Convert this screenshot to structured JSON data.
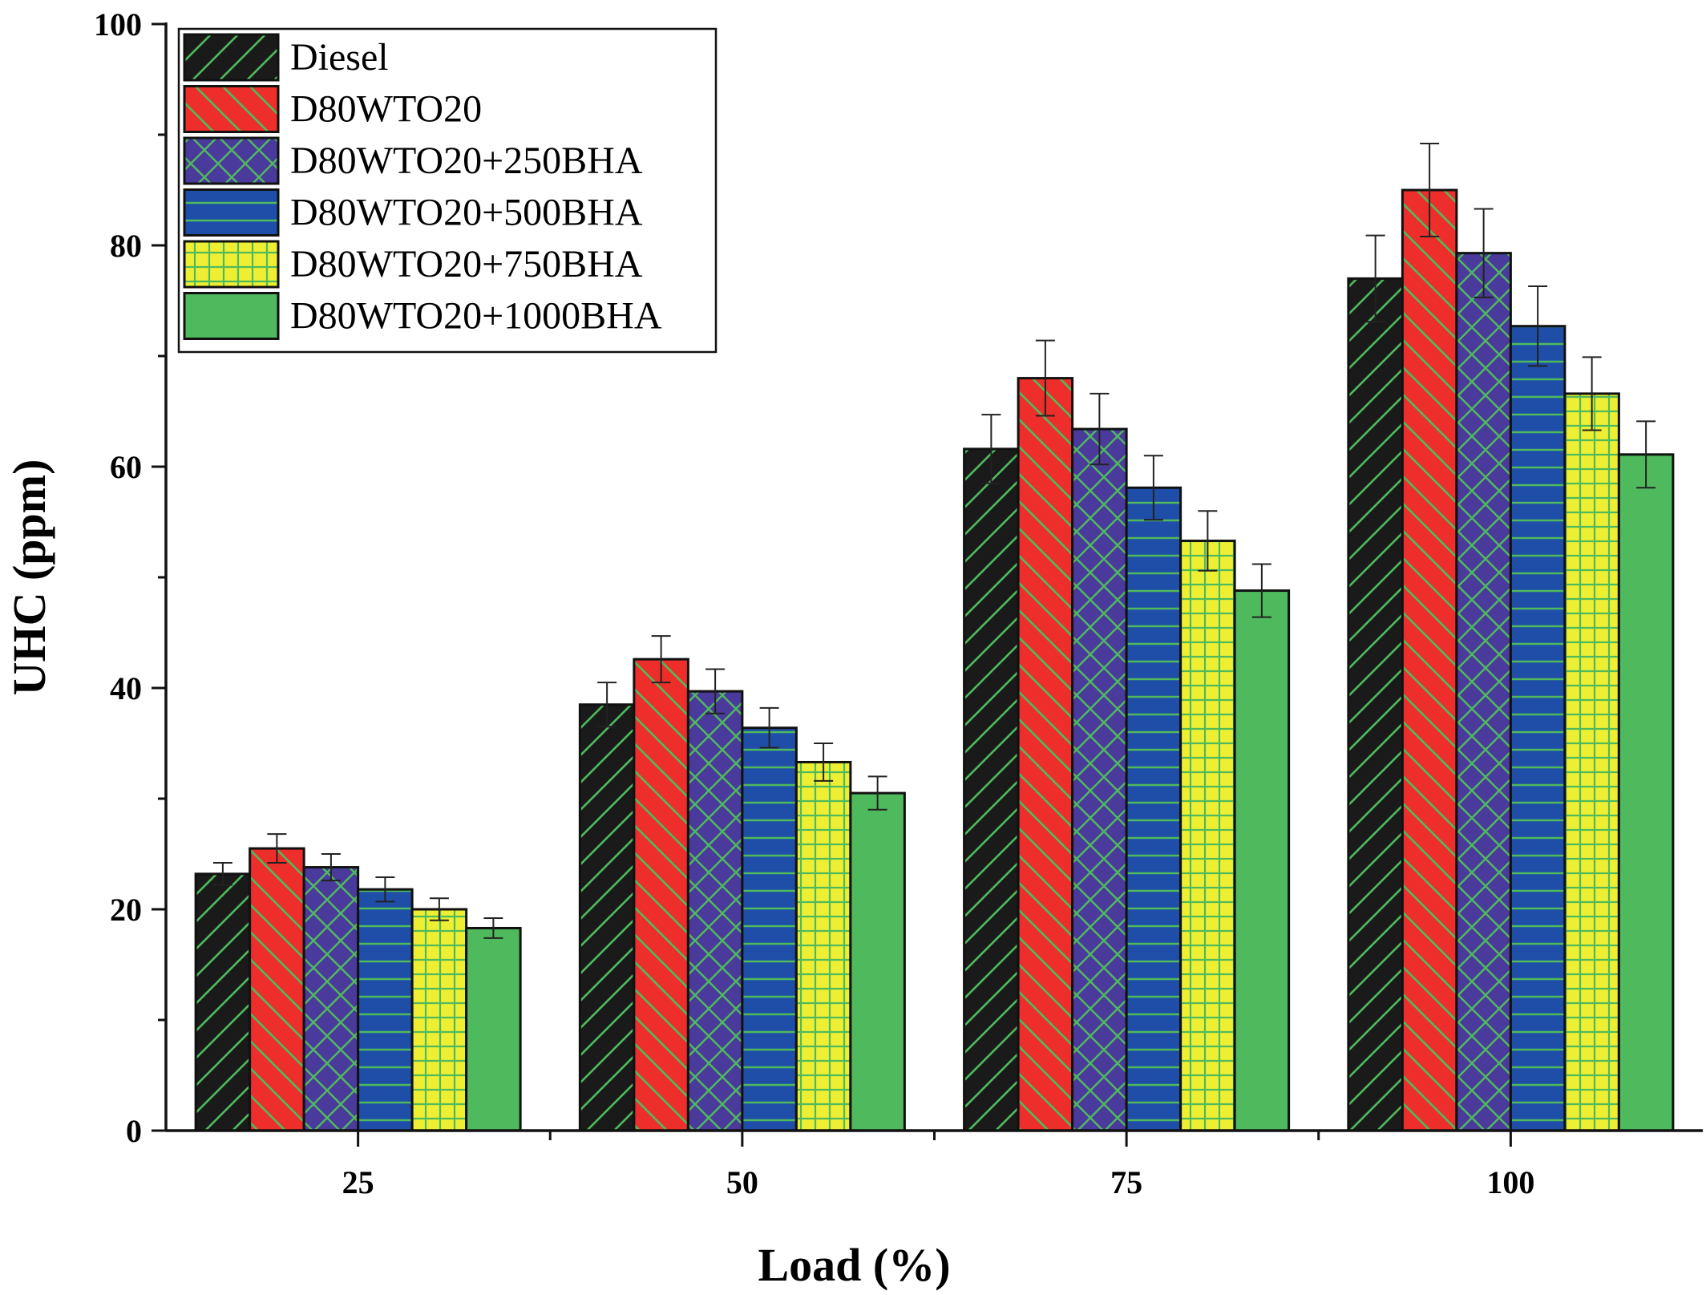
{
  "chart_data": {
    "type": "bar",
    "title": "",
    "xlabel": "Load (%)",
    "ylabel": "UHC (ppm)",
    "categories": [
      "25",
      "50",
      "75",
      "100"
    ],
    "ylim": [
      0,
      100
    ],
    "yticks": [
      "0",
      "20",
      "40",
      "60",
      "80",
      "100"
    ],
    "legend_position": "top-left",
    "grid": false,
    "series": [
      {
        "name": "Diesel",
        "color": "#1a1a1a",
        "pattern": "diag-up",
        "values": [
          23.2,
          38.5,
          61.6,
          77.0
        ],
        "errors": [
          1.0,
          2.0,
          3.1,
          3.9
        ]
      },
      {
        "name": "D80WTO20",
        "color": "#ee2e2a",
        "pattern": "diag-down",
        "values": [
          25.5,
          42.6,
          68.0,
          85.0
        ],
        "errors": [
          1.3,
          2.1,
          3.4,
          4.2
        ]
      },
      {
        "name": "D80WTO20+250BHA",
        "color": "#4a3a9c",
        "pattern": "crosshatch",
        "values": [
          23.8,
          39.7,
          63.4,
          79.3
        ],
        "errors": [
          1.2,
          2.0,
          3.2,
          4.0
        ]
      },
      {
        "name": "D80WTO20+500BHA",
        "color": "#1f4ea8",
        "pattern": "horizontal",
        "values": [
          21.8,
          36.4,
          58.1,
          72.7
        ],
        "errors": [
          1.1,
          1.8,
          2.9,
          3.6
        ]
      },
      {
        "name": "D80WTO20+750BHA",
        "color": "#eeee33",
        "pattern": "grid",
        "values": [
          20.0,
          33.3,
          53.3,
          66.6
        ],
        "errors": [
          1.0,
          1.7,
          2.7,
          3.3
        ]
      },
      {
        "name": "D80WTO20+1000BHA",
        "color": "#4fba5d",
        "pattern": "solid",
        "values": [
          18.3,
          30.5,
          48.8,
          61.1
        ],
        "errors": [
          0.9,
          1.5,
          2.4,
          3.0
        ]
      }
    ],
    "hatch_color": "#4fba5d"
  }
}
